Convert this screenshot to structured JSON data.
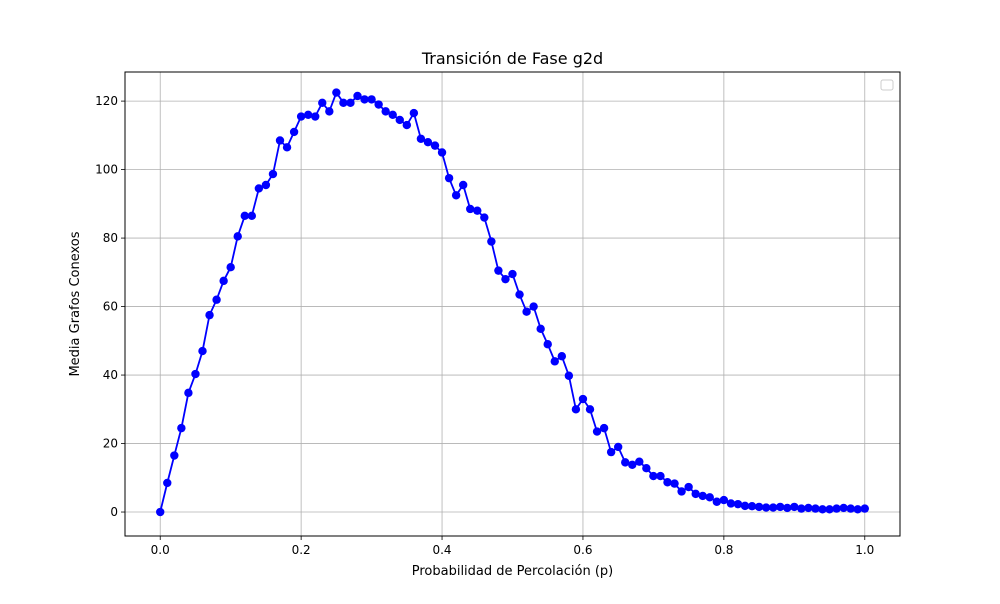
{
  "chart_data": {
    "type": "line",
    "title": "Transición de Fase g2d",
    "xlabel": "Probabilidad de Percolación (p)",
    "ylabel": "Media Grafos Conexos",
    "xlim": [
      -0.05,
      1.05
    ],
    "ylim": [
      -7,
      128.5
    ],
    "x_ticks": [
      0.0,
      0.2,
      0.4,
      0.6,
      0.8,
      1.0
    ],
    "x_tick_labels": [
      "0.0",
      "0.2",
      "0.4",
      "0.6",
      "0.8",
      "1.0"
    ],
    "y_ticks": [
      0,
      20,
      40,
      60,
      80,
      100,
      120
    ],
    "y_tick_labels": [
      "0",
      "20",
      "40",
      "60",
      "80",
      "100",
      "120"
    ],
    "grid": true,
    "legend": "top-right (empty)",
    "series": [
      {
        "color": "#0000ff",
        "marker": "circle",
        "x": [
          0.0,
          0.01,
          0.02,
          0.03,
          0.04,
          0.05,
          0.06,
          0.07,
          0.08,
          0.09,
          0.1,
          0.11,
          0.12,
          0.13,
          0.14,
          0.15,
          0.16,
          0.17,
          0.18,
          0.19,
          0.2,
          0.21,
          0.22,
          0.23,
          0.24,
          0.25,
          0.26,
          0.27,
          0.28,
          0.29,
          0.3,
          0.31,
          0.32,
          0.33,
          0.34,
          0.35,
          0.36,
          0.37,
          0.38,
          0.39,
          0.4,
          0.41,
          0.42,
          0.43,
          0.44,
          0.45,
          0.46,
          0.47,
          0.48,
          0.49,
          0.5,
          0.51,
          0.52,
          0.53,
          0.54,
          0.55,
          0.56,
          0.57,
          0.58,
          0.59,
          0.6,
          0.61,
          0.62,
          0.63,
          0.64,
          0.65,
          0.66,
          0.67,
          0.68,
          0.69,
          0.7,
          0.71,
          0.72,
          0.73,
          0.74,
          0.75,
          0.76,
          0.77,
          0.78,
          0.79,
          0.8,
          0.81,
          0.82,
          0.83,
          0.84,
          0.85,
          0.86,
          0.87,
          0.88,
          0.89,
          0.9,
          0.91,
          0.92,
          0.93,
          0.94,
          0.95,
          0.96,
          0.97,
          0.98,
          0.99,
          1.0
        ],
        "y": [
          0,
          8.5,
          16.5,
          24.5,
          34.8,
          40.3,
          47,
          57.5,
          62,
          67.5,
          71.5,
          80.5,
          86.5,
          86.5,
          94.5,
          95.5,
          98.7,
          108.5,
          106.5,
          111,
          115.5,
          116,
          115.5,
          119.5,
          117,
          122.5,
          119.5,
          119.5,
          121.5,
          120.5,
          120.5,
          119,
          117,
          116,
          114.5,
          113,
          116.5,
          109,
          108,
          107,
          105,
          97.5,
          92.5,
          95.5,
          88.5,
          88,
          86,
          79,
          70.5,
          68,
          69.5,
          63.5,
          58.5,
          60,
          53.5,
          49,
          44,
          45.5,
          39.8,
          30,
          33,
          30,
          23.5,
          24.5,
          17.5,
          19,
          14.5,
          13.8,
          14.7,
          12.8,
          10.5,
          10.5,
          8.7,
          8.3,
          6,
          7.3,
          5.3,
          4.7,
          4.3,
          3,
          3.5,
          2.5,
          2.3,
          1.8,
          1.7,
          1.5,
          1.3,
          1.3,
          1.5,
          1.2,
          1.5,
          1,
          1.2,
          1,
          0.8,
          0.8,
          1,
          1.2,
          1,
          0.8,
          1
        ]
      }
    ]
  }
}
